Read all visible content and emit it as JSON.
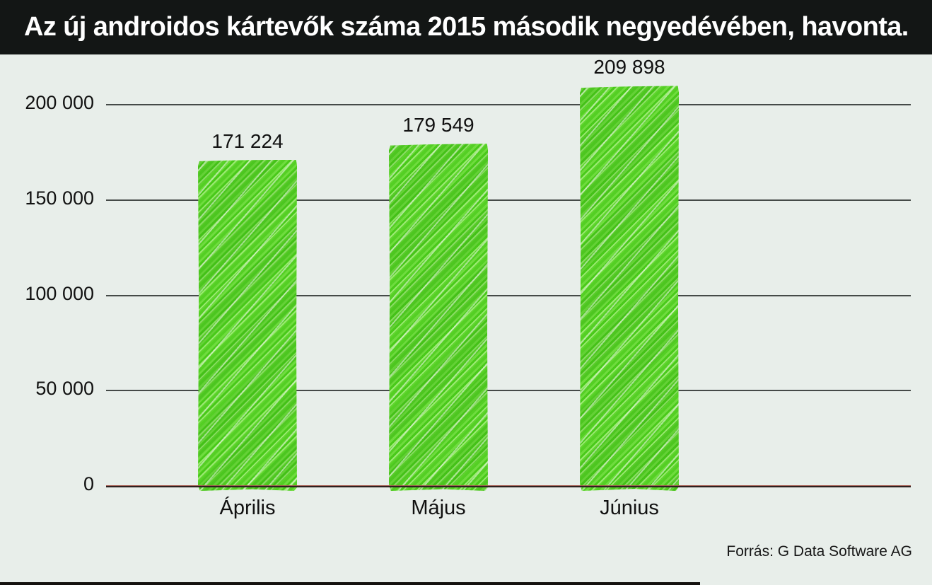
{
  "title_bar": {
    "text": "Az új androidos kártevők száma 2015 második negyedévében, havonta."
  },
  "source": {
    "text": "Forrás: G Data Software AG"
  },
  "colors": {
    "background": "#e8eeea",
    "titlebar_bg": "#131615",
    "titlebar_fg": "#ffffff",
    "bar_green": "#54cf24",
    "bar_green_dark": "#49c91a",
    "bar_green_light": "#9bea72",
    "gridline": "#454a48",
    "baseline_red": "#a3584d",
    "text": "#111111"
  },
  "chart_data": {
    "type": "bar",
    "title": "Az új androidos kártevők száma 2015 második negyedévében, havonta.",
    "categories": [
      "Április",
      "Május",
      "Június"
    ],
    "values": [
      171224,
      179549,
      209898
    ],
    "value_labels": [
      "171 224",
      "179 549",
      "209 898"
    ],
    "xlabel": "",
    "ylabel": "",
    "ylim": [
      0,
      200000
    ],
    "y_ticks": [
      {
        "value": 0,
        "label": "0"
      },
      {
        "value": 50000,
        "label": "50 000"
      },
      {
        "value": 100000,
        "label": "100 000"
      },
      {
        "value": 150000,
        "label": "150 000"
      },
      {
        "value": 200000,
        "label": "200 000"
      }
    ],
    "grid": true,
    "legend": false,
    "bar_texture": "hand-drawn green diagonal scribble",
    "source": "Forrás: G Data Software AG"
  }
}
